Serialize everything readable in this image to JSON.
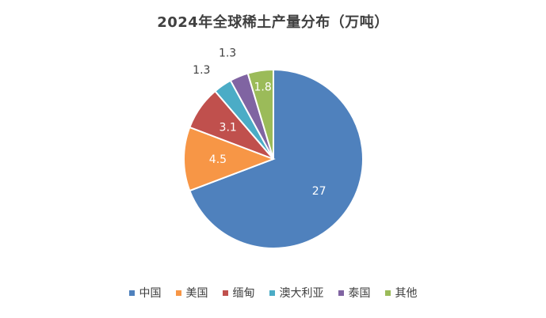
{
  "chart_data": {
    "type": "pie",
    "title": "2024年全球稀土产量分布（万吨）",
    "categories": [
      "中国",
      "美国",
      "缅甸",
      "澳大利亚",
      "泰国",
      "其他"
    ],
    "values": [
      27,
      4.5,
      3.1,
      1.3,
      1.3,
      1.8
    ],
    "data_labels": [
      "27",
      "4.5",
      "3.1",
      "1.3",
      "1.3",
      "1.8"
    ],
    "colors": [
      "#4F81BD",
      "#F79646",
      "#C0504D",
      "#4BACC6",
      "#8064A2",
      "#9BBB59"
    ],
    "legend_position": "bottom",
    "start_angle_deg": 0,
    "direction": "clockwise"
  }
}
